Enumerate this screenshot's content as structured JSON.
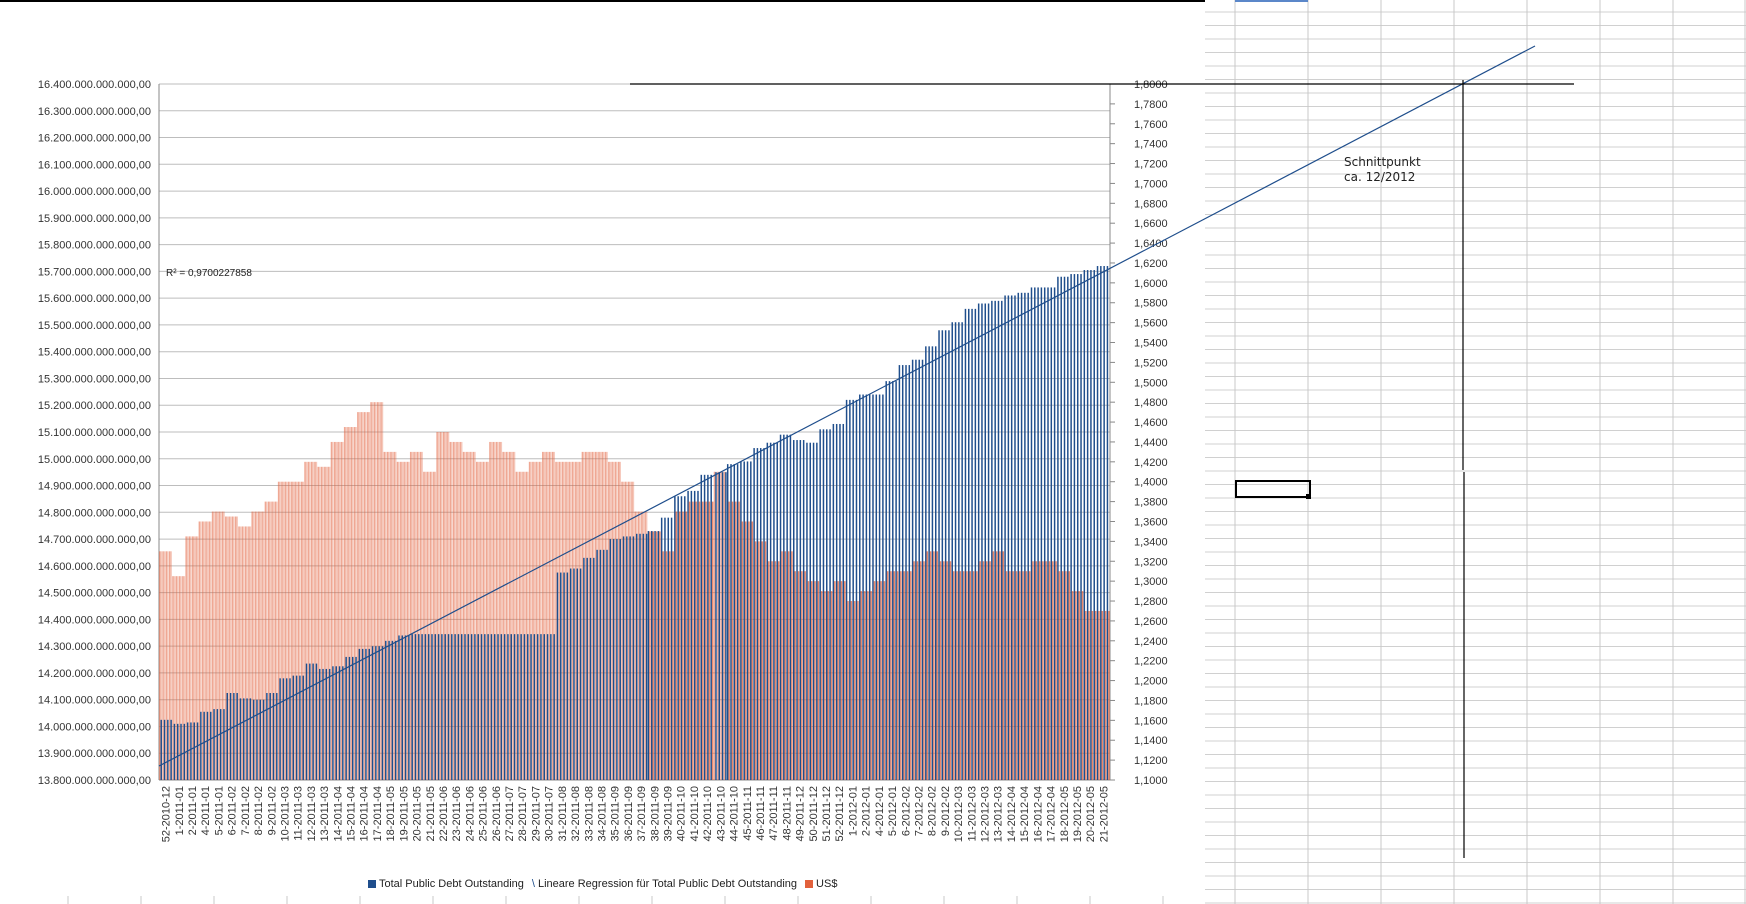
{
  "chart_data": {
    "type": "bar",
    "title": "",
    "y_left": {
      "range": [
        13800000000000,
        16400000000000
      ],
      "ticks": [
        "13.800.000.000.000,00",
        "13.900.000.000.000,00",
        "14.000.000.000.000,00",
        "14.100.000.000.000,00",
        "14.200.000.000.000,00",
        "14.300.000.000.000,00",
        "14.400.000.000.000,00",
        "14.500.000.000.000,00",
        "14.600.000.000.000,00",
        "14.700.000.000.000,00",
        "14.800.000.000.000,00",
        "14.900.000.000.000,00",
        "15.000.000.000.000,00",
        "15.100.000.000.000,00",
        "15.200.000.000.000,00",
        "15.300.000.000.000,00",
        "15.400.000.000.000,00",
        "15.500.000.000.000,00",
        "15.600.000.000.000,00",
        "15.700.000.000.000,00",
        "15.800.000.000.000,00",
        "15.900.000.000.000,00",
        "16.000.000.000.000,00",
        "16.100.000.000.000,00",
        "16.200.000.000.000,00",
        "16.300.000.000.000,00",
        "16.400.000.000.000,00"
      ]
    },
    "y_right": {
      "range": [
        1.1,
        1.8
      ],
      "ticks": [
        "1,1000",
        "1,1200",
        "1,1400",
        "1,1600",
        "1,1800",
        "1,2000",
        "1,2200",
        "1,2400",
        "1,2600",
        "1,2800",
        "1,3000",
        "1,3200",
        "1,3400",
        "1,3600",
        "1,3800",
        "1,4000",
        "1,4200",
        "1,4400",
        "1,4600",
        "1,4800",
        "1,5000",
        "1,5200",
        "1,5400",
        "1,5600",
        "1,5800",
        "1,6000",
        "1,6200",
        "1,6400",
        "1,6600",
        "1,6800",
        "1,7000",
        "1,7200",
        "1,7400",
        "1,7600",
        "1,7800",
        "1,8000"
      ]
    },
    "categories": [
      "52-2010-12",
      "1-2011-01",
      "2-2011-01",
      "4-2011-01",
      "5-2011-01",
      "6-2011-02",
      "7-2011-02",
      "8-2011-02",
      "9-2011-02",
      "10-2011-03",
      "11-2011-03",
      "12-2011-03",
      "13-2011-03",
      "14-2011-04",
      "15-2011-04",
      "16-2011-04",
      "17-2011-04",
      "18-2011-05",
      "19-2011-05",
      "20-2011-05",
      "21-2011-05",
      "22-2011-06",
      "23-2011-06",
      "24-2011-06",
      "25-2011-06",
      "26-2011-06",
      "27-2011-07",
      "28-2011-07",
      "29-2011-07",
      "30-2011-07",
      "31-2011-08",
      "32-2011-08",
      "33-2011-08",
      "34-2011-08",
      "35-2011-09",
      "36-2011-09",
      "37-2011-09",
      "38-2011-09",
      "39-2011-09",
      "40-2011-10",
      "41-2011-10",
      "42-2011-10",
      "43-2011-10",
      "44-2011-10",
      "45-2011-11",
      "46-2011-11",
      "47-2011-11",
      "48-2011-11",
      "49-2011-12",
      "50-2011-12",
      "51-2011-12",
      "52-2011-12",
      "1-2012-01",
      "2-2012-01",
      "4-2012-01",
      "5-2012-01",
      "6-2012-02",
      "7-2012-02",
      "8-2012-02",
      "9-2012-02",
      "10-2012-03",
      "11-2012-03",
      "12-2012-03",
      "13-2012-03",
      "14-2012-04",
      "15-2012-04",
      "16-2012-04",
      "17-2012-04",
      "18-2012-05",
      "19-2012-05",
      "20-2012-05",
      "21-2012-05"
    ],
    "series": [
      {
        "name": "Total Public Debt Outstanding",
        "color": "#1f4e8c",
        "axis": "left",
        "values": [
          14025000000000,
          14010000000000,
          14015000000000,
          14055000000000,
          14065000000000,
          14125000000000,
          14105000000000,
          14100000000000,
          14125000000000,
          14180000000000,
          14190000000000,
          14235000000000,
          14215000000000,
          14225000000000,
          14260000000000,
          14290000000000,
          14300000000000,
          14320000000000,
          14340000000000,
          14345000000000,
          14345000000000,
          14345000000000,
          14345000000000,
          14345000000000,
          14345000000000,
          14345000000000,
          14345000000000,
          14345000000000,
          14345000000000,
          14345000000000,
          14575000000000,
          14590000000000,
          14630000000000,
          14660000000000,
          14700000000000,
          14710000000000,
          14720000000000,
          14730000000000,
          14780000000000,
          14860000000000,
          14880000000000,
          14940000000000,
          14950000000000,
          14980000000000,
          14990000000000,
          15040000000000,
          15060000000000,
          15090000000000,
          15070000000000,
          15060000000000,
          15110000000000,
          15130000000000,
          15220000000000,
          15240000000000,
          15240000000000,
          15290000000000,
          15350000000000,
          15370000000000,
          15420000000000,
          15480000000000,
          15510000000000,
          15560000000000,
          15580000000000,
          15590000000000,
          15610000000000,
          15620000000000,
          15640000000000,
          15640000000000,
          15680000000000,
          15690000000000,
          15705000000000,
          15720000000000
        ]
      },
      {
        "name": "US$",
        "color": "#e2613c",
        "axis": "right",
        "values": [
          1.33,
          1.305,
          1.345,
          1.36,
          1.37,
          1.365,
          1.355,
          1.37,
          1.38,
          1.4,
          1.4,
          1.42,
          1.415,
          1.44,
          1.455,
          1.47,
          1.48,
          1.43,
          1.42,
          1.43,
          1.41,
          1.45,
          1.44,
          1.43,
          1.42,
          1.44,
          1.43,
          1.41,
          1.42,
          1.43,
          1.42,
          1.42,
          1.43,
          1.43,
          1.42,
          1.4,
          1.37,
          1.35,
          1.33,
          1.37,
          1.38,
          1.38,
          1.41,
          1.38,
          1.36,
          1.34,
          1.32,
          1.33,
          1.31,
          1.3,
          1.29,
          1.3,
          1.28,
          1.29,
          1.3,
          1.31,
          1.31,
          1.32,
          1.33,
          1.32,
          1.31,
          1.31,
          1.32,
          1.33,
          1.31,
          1.31,
          1.32,
          1.32,
          1.31,
          1.29,
          1.27,
          1.27
        ]
      }
    ],
    "trendline": {
      "name": "Lineare Regression für Total Public Debt Outstanding",
      "color": "#1f4e8c",
      "r_squared_label": "R² = 0,9700227858"
    },
    "annotation": [
      "Schnittpunkt",
      "ca. 12/2012"
    ],
    "legend_position": "bottom",
    "grid": true
  },
  "legend": {
    "debt": "Total Public Debt Outstanding",
    "regression": "Lineare Regression für Total Public Debt Outstanding",
    "usd": "US$"
  }
}
